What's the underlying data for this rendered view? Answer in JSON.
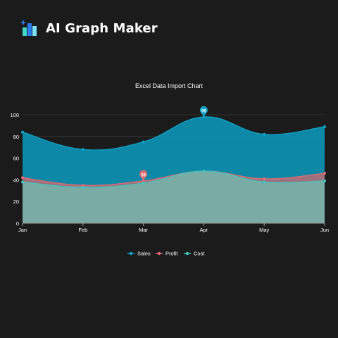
{
  "app": {
    "name": "AI Graph Maker",
    "logo_icon": "bar-chart-sparkle-icon"
  },
  "chart_data": {
    "type": "area",
    "title": "Excel Data Import Chart",
    "xlabel": "",
    "ylabel": "",
    "categories": [
      "Jan",
      "Feb",
      "Mar",
      "Apr",
      "May",
      "Jun"
    ],
    "ylim": [
      0,
      100
    ],
    "yticks": [
      0,
      20,
      40,
      60,
      80,
      100
    ],
    "grid": "horizontal",
    "legend": "bottom-center",
    "series": [
      {
        "name": "Sales",
        "values": [
          84,
          68,
          75,
          98,
          82,
          89
        ],
        "color": "#0ea5c9"
      },
      {
        "name": "Profit",
        "values": [
          42,
          35,
          39,
          48,
          41,
          46
        ],
        "color": "#e36a72"
      },
      {
        "name": "Cost",
        "values": [
          38,
          33,
          37,
          48,
          38,
          39
        ],
        "color": "#3fc8be"
      }
    ],
    "annotations": [
      {
        "series": "Sales",
        "category": "Apr",
        "label": "98"
      },
      {
        "series": "Profit",
        "category": "Mar",
        "label": "39"
      }
    ]
  }
}
